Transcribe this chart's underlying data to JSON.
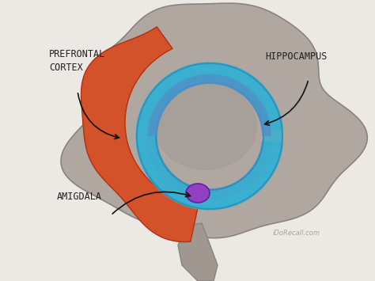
{
  "bg_color": "#ece9e4",
  "brain_color": "#b0a8a0",
  "brain_inner_color": "#9a9290",
  "brainstem_color": "#a09890",
  "prefrontal_color": "#d4522a",
  "hippocampus_outer_color": "#3ab0d0",
  "hippocampus_inner_color": "#5090c8",
  "amygdala_color": "#9040c0",
  "label_color": "#222222",
  "arrow_color": "#111111",
  "labels": {
    "prefrontal": "PREFRONTAL\nCORTEX",
    "hippocampus": "HIPPOCAMPUS",
    "amygdala": "AMIGDALA"
  },
  "watermark": "iDoRecall.com"
}
